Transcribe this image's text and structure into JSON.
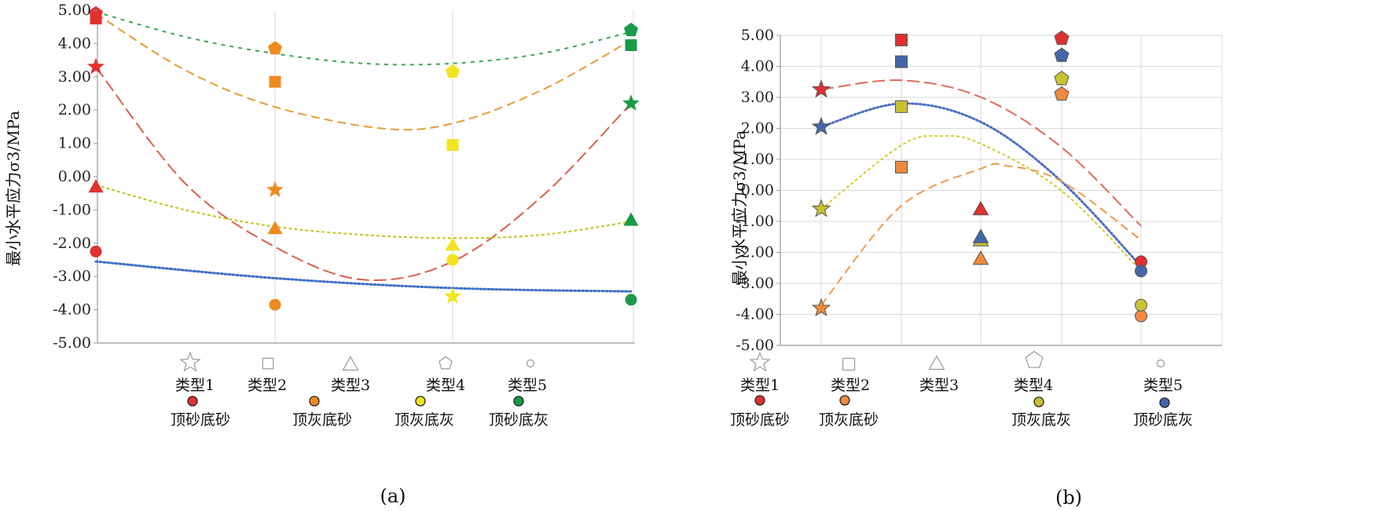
{
  "chart_data": [
    {
      "type": "scatter",
      "panel_label": "(a)",
      "ylabel": "最小水平应力σ3/MPa",
      "ylim": [
        -5,
        5
      ],
      "yticks": [
        "5.00",
        "4.00",
        "3.00",
        "2.00",
        "1.00",
        "0.00",
        "-1.00",
        "-2.00",
        "-3.00",
        "-4.00",
        "-5.00"
      ],
      "x_categories": 4,
      "grid": true,
      "shape_legend": [
        "类型1",
        "类型2",
        "类型3",
        "类型4",
        "类型5"
      ],
      "series": [
        {
          "name": "顶砂底砂",
          "color": "#e03030",
          "points": [
            {
              "x": 1,
              "y": 4.9,
              "marker": "pentagon"
            },
            {
              "x": 1,
              "y": 4.75,
              "marker": "square"
            },
            {
              "x": 1,
              "y": 3.3,
              "marker": "star"
            },
            {
              "x": 1,
              "y": -0.3,
              "marker": "triangle"
            },
            {
              "x": 1,
              "y": -2.25,
              "marker": "circle"
            }
          ]
        },
        {
          "name": "顶灰底砂",
          "color": "#ef8a1e",
          "points": [
            {
              "x": 2,
              "y": 3.85,
              "marker": "pentagon"
            },
            {
              "x": 2,
              "y": 2.85,
              "marker": "square"
            },
            {
              "x": 2,
              "y": -0.4,
              "marker": "star"
            },
            {
              "x": 2,
              "y": -1.55,
              "marker": "triangle"
            },
            {
              "x": 2,
              "y": -3.85,
              "marker": "circle"
            }
          ]
        },
        {
          "name": "顶灰底灰",
          "color": "#f2e421",
          "points": [
            {
              "x": 3,
              "y": 3.15,
              "marker": "pentagon"
            },
            {
              "x": 3,
              "y": 0.95,
              "marker": "square"
            },
            {
              "x": 3,
              "y": -2.05,
              "marker": "triangle"
            },
            {
              "x": 3,
              "y": -2.5,
              "marker": "circle"
            },
            {
              "x": 3,
              "y": -3.6,
              "marker": "star"
            }
          ]
        },
        {
          "name": "顶砂底灰",
          "color": "#1a9a48",
          "points": [
            {
              "x": 4,
              "y": 4.4,
              "marker": "pentagon"
            },
            {
              "x": 4,
              "y": 3.95,
              "marker": "square"
            },
            {
              "x": 4,
              "y": 2.2,
              "marker": "star"
            },
            {
              "x": 4,
              "y": -1.3,
              "marker": "triangle"
            },
            {
              "x": 4,
              "y": -3.7,
              "marker": "circle"
            }
          ]
        }
      ],
      "trendlines": [
        {
          "color": "#d9604a",
          "dash": "long",
          "points": [
            [
              1,
              3.3
            ],
            [
              1.5,
              -0.2
            ],
            [
              2,
              -2.1
            ],
            [
              2.5,
              -3.1
            ],
            [
              3,
              -2.55
            ],
            [
              3.5,
              -0.6
            ],
            [
              4,
              2.2
            ]
          ]
        },
        {
          "color": "#e79a35",
          "dash": "medium",
          "points": [
            [
              1,
              4.9
            ],
            [
              1.5,
              3.2
            ],
            [
              2,
              2.1
            ],
            [
              2.6,
              1.45
            ],
            [
              3,
              1.6
            ],
            [
              3.5,
              2.6
            ],
            [
              4,
              4.1
            ]
          ]
        },
        {
          "color": "#3aa652",
          "dash": "short",
          "points": [
            [
              1,
              4.95
            ],
            [
              1.5,
              4.2
            ],
            [
              2,
              3.7
            ],
            [
              2.5,
              3.4
            ],
            [
              3,
              3.4
            ],
            [
              3.5,
              3.7
            ],
            [
              4,
              4.35
            ]
          ]
        },
        {
          "color": "#c2c222",
          "dash": "fine",
          "points": [
            [
              1,
              -0.25
            ],
            [
              1.5,
              -1.0
            ],
            [
              2,
              -1.5
            ],
            [
              2.5,
              -1.75
            ],
            [
              3,
              -1.85
            ],
            [
              3.5,
              -1.75
            ],
            [
              4,
              -1.35
            ]
          ]
        },
        {
          "color": "#3c6ec4",
          "dash": "dot",
          "points": [
            [
              1,
              -2.55
            ],
            [
              2,
              -3.05
            ],
            [
              3,
              -3.35
            ],
            [
              4,
              -3.45
            ]
          ]
        }
      ]
    },
    {
      "type": "scatter",
      "panel_label": "(b)",
      "ylabel": "最小水平应力σ3/MPa",
      "ylim": [
        -5,
        5
      ],
      "yticks": [
        "5.00",
        "4.00",
        "3.00",
        "2.00",
        "1.00",
        "0.00",
        "-1.00",
        "-2.00",
        "-3.00",
        "-4.00",
        "-5.00"
      ],
      "x_categories": 5,
      "grid": true,
      "shape_legend": [
        "类型1",
        "类型2",
        "类型3",
        "类型4",
        "类型5"
      ],
      "series": [
        {
          "name": "顶砂底砂",
          "color": "#e03030",
          "points": [
            {
              "x": 1,
              "y": 3.25,
              "marker": "star"
            },
            {
              "x": 2,
              "y": 4.85,
              "marker": "square"
            },
            {
              "x": 3,
              "y": -0.6,
              "marker": "triangle"
            },
            {
              "x": 4,
              "y": 4.9,
              "marker": "pentagon"
            },
            {
              "x": 5,
              "y": -2.3,
              "marker": "circle"
            }
          ]
        },
        {
          "name": "顶灰底砂",
          "color": "#ef8a3e",
          "points": [
            {
              "x": 1,
              "y": -3.8,
              "marker": "star"
            },
            {
              "x": 2,
              "y": 0.75,
              "marker": "square"
            },
            {
              "x": 3,
              "y": -2.2,
              "marker": "triangle"
            },
            {
              "x": 4,
              "y": 3.1,
              "marker": "pentagon"
            },
            {
              "x": 5,
              "y": -4.05,
              "marker": "circle"
            }
          ]
        },
        {
          "name": "顶灰底灰",
          "color": "#c8c230",
          "points": [
            {
              "x": 1,
              "y": -0.6,
              "marker": "star"
            },
            {
              "x": 2,
              "y": 2.7,
              "marker": "square"
            },
            {
              "x": 3,
              "y": -1.6,
              "marker": "triangle"
            },
            {
              "x": 4,
              "y": 3.6,
              "marker": "pentagon"
            },
            {
              "x": 5,
              "y": -3.7,
              "marker": "circle"
            }
          ]
        },
        {
          "name": "顶砂底灰",
          "color": "#4466aa",
          "points": [
            {
              "x": 1,
              "y": 2.05,
              "marker": "star"
            },
            {
              "x": 2,
              "y": 4.15,
              "marker": "square"
            },
            {
              "x": 3,
              "y": -1.5,
              "marker": "triangle"
            },
            {
              "x": 4,
              "y": 4.35,
              "marker": "pentagon"
            },
            {
              "x": 5,
              "y": -2.6,
              "marker": "circle"
            }
          ]
        }
      ],
      "trendlines": [
        {
          "color": "#e06a5a",
          "dash": "long",
          "points": [
            [
              1,
              3.25
            ],
            [
              2,
              3.55
            ],
            [
              3,
              3.0
            ],
            [
              4,
              1.4
            ],
            [
              5,
              -1.15
            ]
          ]
        },
        {
          "color": "#4a6fc4",
          "dash": "dot",
          "points": [
            [
              1,
              2.05
            ],
            [
              2,
              2.8
            ],
            [
              3,
              2.2
            ],
            [
              4,
              0.3
            ],
            [
              5,
              -2.45
            ]
          ]
        },
        {
          "color": "#d4c830",
          "dash": "fine",
          "points": [
            [
              1,
              -0.6
            ],
            [
              2,
              1.45
            ],
            [
              2.5,
              1.75
            ],
            [
              3,
              1.5
            ],
            [
              4,
              0.0
            ],
            [
              5,
              -2.6
            ]
          ]
        },
        {
          "color": "#ee9a4a",
          "dash": "medium",
          "points": [
            [
              1,
              -3.7
            ],
            [
              2,
              -0.5
            ],
            [
              3,
              0.7
            ],
            [
              3.3,
              0.8
            ],
            [
              4,
              0.3
            ],
            [
              5,
              -1.6
            ]
          ]
        }
      ]
    }
  ]
}
